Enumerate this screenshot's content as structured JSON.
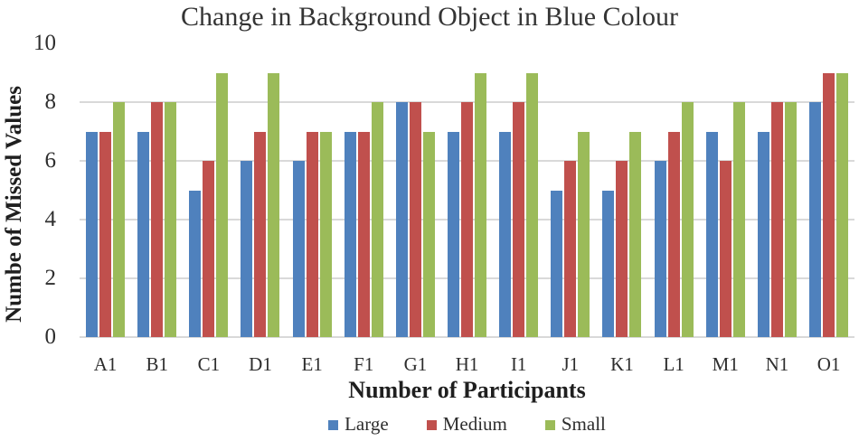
{
  "chart_data": {
    "type": "bar",
    "title": "Change in Background Object in Blue Colour",
    "xlabel": "Number of Participants",
    "ylabel": "Numbe of Missed Values",
    "categories": [
      "A1",
      "B1",
      "C1",
      "D1",
      "E1",
      "F1",
      "G1",
      "H1",
      "I1",
      "J1",
      "K1",
      "L1",
      "M1",
      "N1",
      "O1"
    ],
    "series": [
      {
        "name": "Large",
        "color": "#4F81BD",
        "values": [
          7,
          7,
          5,
          6,
          6,
          7,
          8,
          7,
          7,
          5,
          5,
          6,
          7,
          7,
          8
        ]
      },
      {
        "name": "Medium",
        "color": "#C0504D",
        "values": [
          7,
          8,
          6,
          7,
          7,
          7,
          8,
          8,
          8,
          6,
          6,
          7,
          6,
          8,
          9
        ]
      },
      {
        "name": "Small",
        "color": "#9BBB59",
        "values": [
          8,
          8,
          9,
          9,
          7,
          8,
          7,
          9,
          9,
          7,
          7,
          8,
          8,
          8,
          9
        ]
      }
    ],
    "ylim": [
      0,
      10
    ],
    "yticks": [
      0,
      2,
      4,
      6,
      8,
      10
    ],
    "gridline_values": [
      0,
      2,
      4,
      6,
      8
    ],
    "grid": true,
    "legend_position": "bottom",
    "colors": {
      "gridline": "#D9D9D9",
      "text": "#2E2E2E"
    }
  }
}
